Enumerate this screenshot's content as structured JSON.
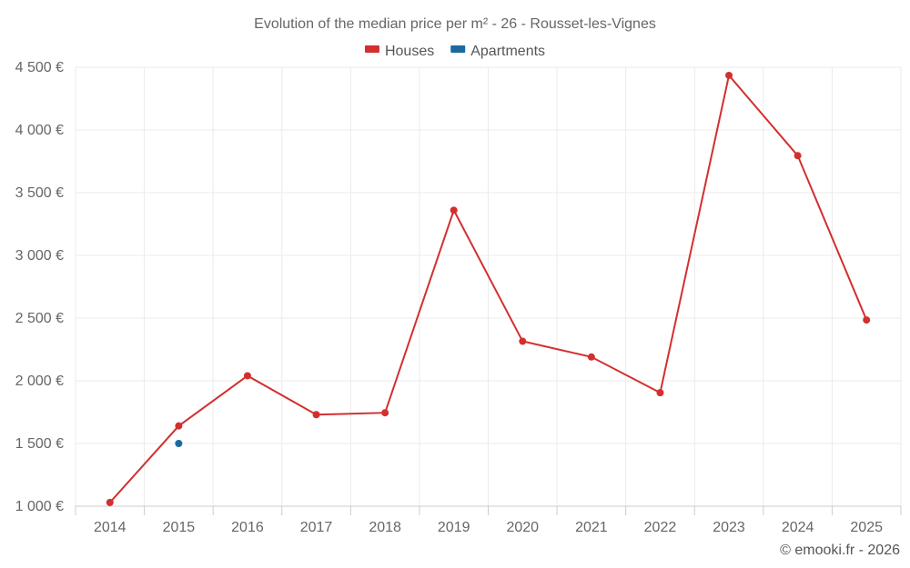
{
  "chart_data": {
    "type": "line",
    "title": "Evolution of the median price per m² - 26 - Rousset-les-Vignes",
    "categories": [
      "2014",
      "2015",
      "2016",
      "2017",
      "2018",
      "2019",
      "2020",
      "2021",
      "2022",
      "2023",
      "2024",
      "2025"
    ],
    "series": [
      {
        "name": "Houses",
        "color": "#d32f2f",
        "values": [
          1030,
          1640,
          2040,
          1730,
          1745,
          3360,
          2315,
          2190,
          1905,
          4435,
          3795,
          2485
        ]
      },
      {
        "name": "Apartments",
        "color": "#1a6aa0",
        "values": [
          null,
          1500,
          null,
          null,
          null,
          null,
          null,
          null,
          null,
          null,
          null,
          null
        ]
      }
    ],
    "yticks": [
      "1 000 €",
      "1 500 €",
      "2 000 €",
      "2 500 €",
      "3 000 €",
      "3 500 €",
      "4 000 €",
      "4 500 €"
    ],
    "ylim": [
      1000,
      4500
    ],
    "grid": true,
    "legend_position": "top-center"
  },
  "credit": "© emooki.fr - 2026"
}
